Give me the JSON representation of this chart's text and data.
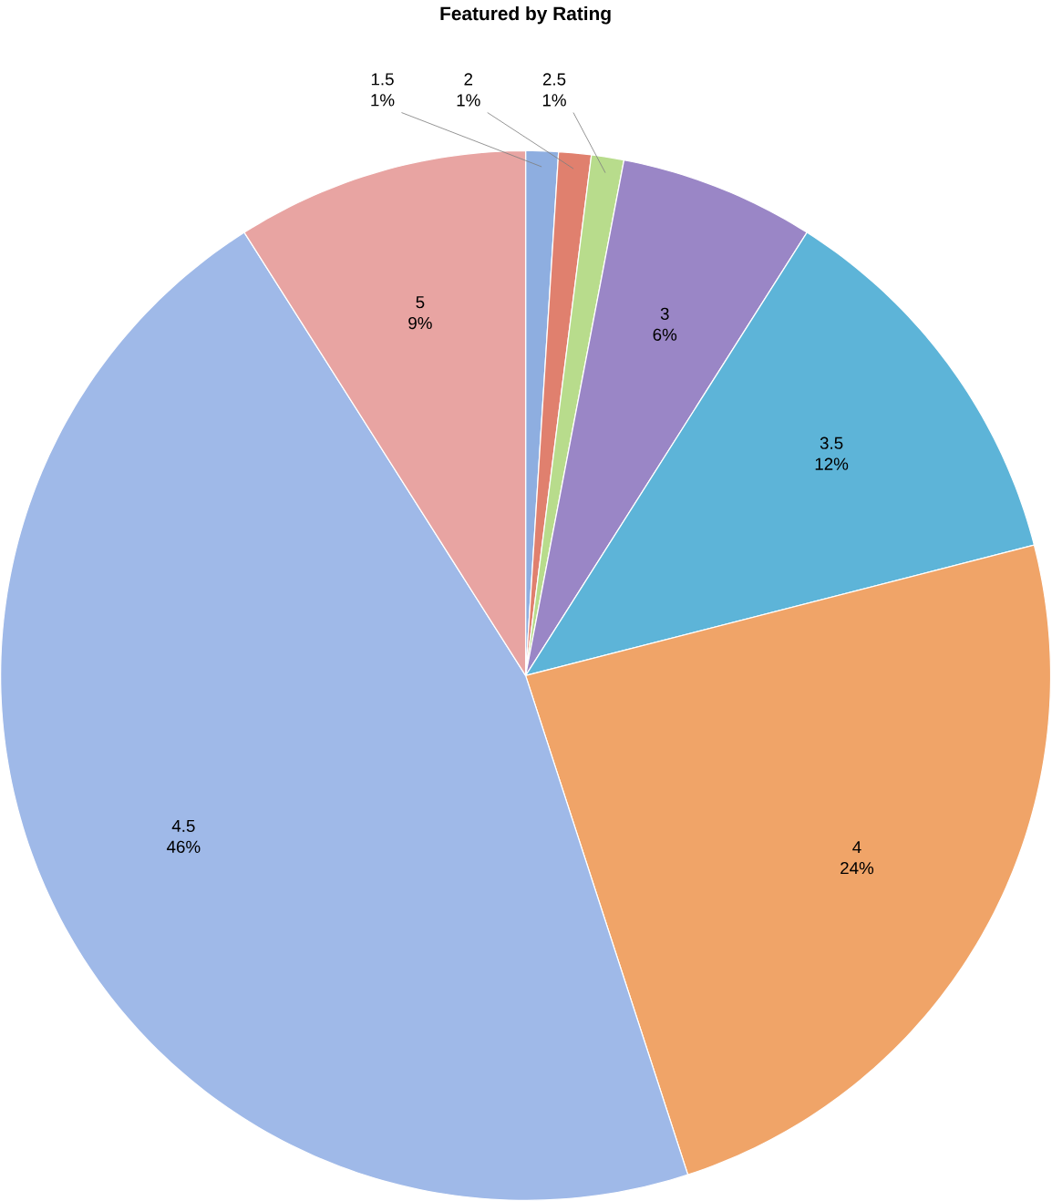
{
  "chart_data": {
    "type": "pie",
    "title": "Featured by Rating",
    "categories": [
      "1.5",
      "2",
      "2.5",
      "3",
      "3.5",
      "4",
      "4.5",
      "5"
    ],
    "values": [
      1,
      1,
      1,
      6,
      12,
      24,
      46,
      9
    ],
    "value_labels": [
      "1%",
      "1%",
      "1%",
      "6%",
      "12%",
      "24%",
      "46%",
      "9%"
    ],
    "colors": [
      "#8eaee0",
      "#e0806e",
      "#b8dc8c",
      "#9a86c6",
      "#5db4d8",
      "#f0a468",
      "#9fb9e8",
      "#e8a4a2"
    ]
  }
}
